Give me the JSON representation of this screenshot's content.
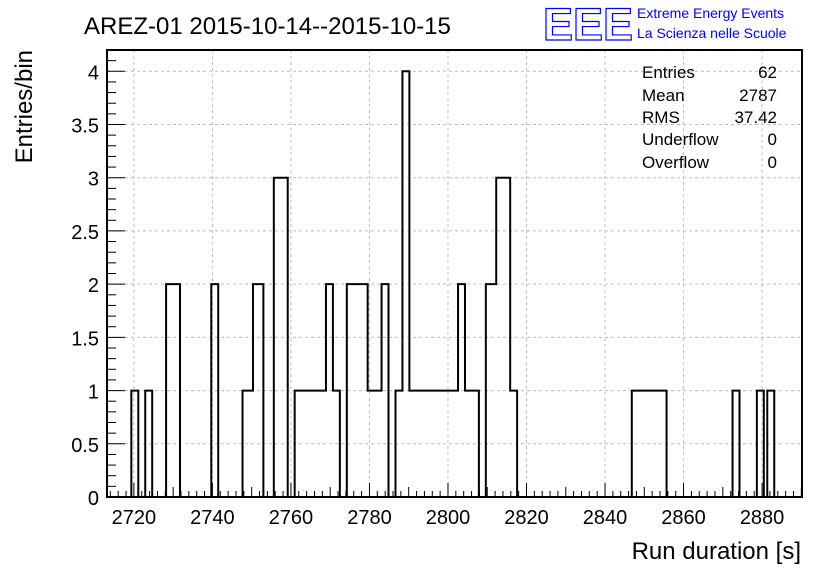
{
  "header": {
    "title": "AREZ-01 2015-10-14--2015-10-15",
    "logo_text": "EEE",
    "logo_line1": "Extreme Energy Events",
    "logo_line2": "La Scienza nelle Scuole",
    "logo_color": "#0000ff"
  },
  "stats": [
    {
      "label": "Entries",
      "value": "62"
    },
    {
      "label": "Mean",
      "value": "2787"
    },
    {
      "label": "RMS",
      "value": "37.42"
    },
    {
      "label": "Underflow",
      "value": "0"
    },
    {
      "label": "Overflow",
      "value": "0"
    }
  ],
  "chart_data": {
    "type": "bar",
    "style": "step-histogram",
    "xlabel": "Run duration [s]",
    "ylabel": "Entries/bin",
    "xlim": [
      2713.15,
      2890.17
    ],
    "ylim": [
      0,
      4.2
    ],
    "grid": true,
    "bin_width": 1.77,
    "x_ticks": [
      "2720",
      "2740",
      "2760",
      "2780",
      "2800",
      "2820",
      "2840",
      "2860",
      "2880"
    ],
    "y_ticks": [
      "0",
      "0.5",
      "1",
      "1.5",
      "2",
      "2.5",
      "3",
      "3.5",
      "4"
    ],
    "bin_start": [
      2719.35,
      2722.89,
      2728.2,
      2739.71,
      2747.67,
      2750.33,
      2755.64,
      2760.95,
      2768.92,
      2770.69,
      2774.23,
      2779.54,
      2783.08,
      2786.63,
      2788.4,
      2790.17,
      2791.94,
      2802.56,
      2804.33,
      2806.1,
      2809.64,
      2812.29,
      2815.84,
      2846.82,
      2872.48,
      2878.67,
      2881.33
    ],
    "bin_end": [
      2721.12,
      2724.66,
      2731.74,
      2741.48,
      2750.33,
      2752.98,
      2759.18,
      2768.92,
      2770.69,
      2772.46,
      2779.54,
      2783.08,
      2784.85,
      2788.4,
      2790.17,
      2791.94,
      2802.56,
      2804.33,
      2806.1,
      2807.87,
      2812.29,
      2815.84,
      2817.61,
      2855.67,
      2874.25,
      2880.44,
      2883.1
    ],
    "values": [
      1,
      1,
      2,
      2,
      1,
      2,
      3,
      1,
      2,
      1,
      2,
      1,
      2,
      1,
      4,
      1,
      1,
      2,
      1,
      1,
      2,
      3,
      1,
      1,
      1,
      1,
      1
    ]
  }
}
